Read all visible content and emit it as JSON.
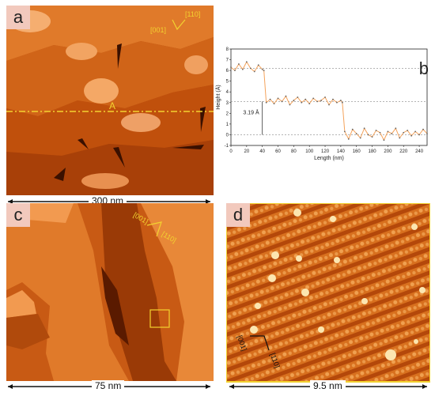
{
  "panels": {
    "a": {
      "label": "a",
      "scale_text": "300 nm",
      "marker_A": "A",
      "dir_001": "[001]",
      "dir_110": "[110]"
    },
    "b": {
      "label": "b"
    },
    "c": {
      "label": "c",
      "scale_text": "75 nm",
      "dir_001": "[001]",
      "dir_110": "[110]"
    },
    "d": {
      "label": "d",
      "scale_text": "9.5 nm",
      "dir_001": "[001]",
      "dir_110": "[110]"
    }
  },
  "colors": {
    "stm_dark": "#5a1a00",
    "stm_mid": "#c9530d",
    "stm_light": "#f5a060",
    "profile_line": "#f4a25a",
    "marker_yellow": "#f2d230"
  },
  "chart_data": {
    "type": "line",
    "xlabel": "Length (nm)",
    "ylabel": "Height (Å)",
    "xlim": [
      0,
      250
    ],
    "ylim": [
      -1,
      8
    ],
    "xticks": [
      0,
      20,
      40,
      60,
      80,
      100,
      120,
      140,
      160,
      180,
      200,
      220,
      240
    ],
    "yticks": [
      -1,
      0,
      1,
      2,
      3,
      4,
      5,
      6,
      7,
      8
    ],
    "annotation": "3.19 Å",
    "step_levels": [
      6.2,
      3.1,
      0.0
    ],
    "step_positions": [
      42,
      142
    ],
    "x": [
      0,
      5,
      10,
      15,
      20,
      25,
      30,
      35,
      40,
      42,
      45,
      50,
      55,
      60,
      65,
      70,
      75,
      80,
      85,
      90,
      95,
      100,
      105,
      110,
      115,
      120,
      125,
      130,
      135,
      140,
      142,
      145,
      150,
      155,
      160,
      165,
      170,
      175,
      180,
      185,
      190,
      195,
      200,
      205,
      210,
      215,
      220,
      225,
      230,
      235,
      240,
      245,
      250
    ],
    "y": [
      6.3,
      6.0,
      6.6,
      6.1,
      6.8,
      6.2,
      5.9,
      6.5,
      6.1,
      6.0,
      3.0,
      3.3,
      2.9,
      3.4,
      3.1,
      3.6,
      2.8,
      3.2,
      3.5,
      3.0,
      3.3,
      2.9,
      3.4,
      3.1,
      3.2,
      3.5,
      2.8,
      3.3,
      3.0,
      3.2,
      3.0,
      0.3,
      -0.4,
      0.5,
      0.1,
      -0.3,
      0.6,
      0.0,
      -0.2,
      0.4,
      0.2,
      -0.5,
      0.3,
      0.1,
      0.6,
      -0.3,
      0.2,
      0.4,
      -0.1,
      0.3,
      0.0,
      0.5,
      0.1
    ]
  }
}
